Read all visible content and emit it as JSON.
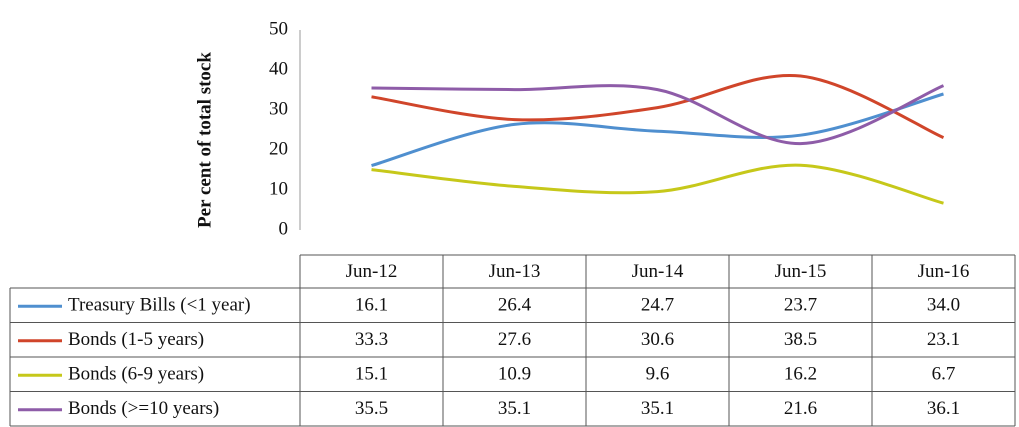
{
  "chart_data": {
    "type": "line",
    "y_label": "Per cent of total stock",
    "categories": [
      "Jun-12",
      "Jun-13",
      "Jun-14",
      "Jun-15",
      "Jun-16"
    ],
    "ylim": [
      0,
      50
    ],
    "yticks": [
      0,
      10,
      20,
      30,
      40,
      50
    ],
    "series": [
      {
        "name": "Treasury Bills (<1 year)",
        "color": "#4f8fcf",
        "values": [
          16.1,
          26.4,
          24.7,
          23.7,
          34.0
        ],
        "value_labels": [
          "16.1",
          "26.4",
          "24.7",
          "23.7",
          "34.0"
        ]
      },
      {
        "name": "Bonds (1-5 years)",
        "color": "#d0452a",
        "values": [
          33.3,
          27.6,
          30.6,
          38.5,
          23.1
        ],
        "value_labels": [
          "33.3",
          "27.6",
          "30.6",
          "38.5",
          "23.1"
        ]
      },
      {
        "name": "Bonds (6-9 years)",
        "color": "#c6c81a",
        "values": [
          15.1,
          10.9,
          9.6,
          16.2,
          6.7
        ],
        "value_labels": [
          "15.1",
          "10.9",
          "9.6",
          "16.2",
          "6.7"
        ]
      },
      {
        "name": "Bonds (>=10 years)",
        "color": "#8e5ca8",
        "values": [
          35.5,
          35.1,
          35.1,
          21.6,
          36.1
        ],
        "value_labels": [
          "35.5",
          "35.1",
          "35.1",
          "21.6",
          "36.1"
        ]
      }
    ]
  }
}
